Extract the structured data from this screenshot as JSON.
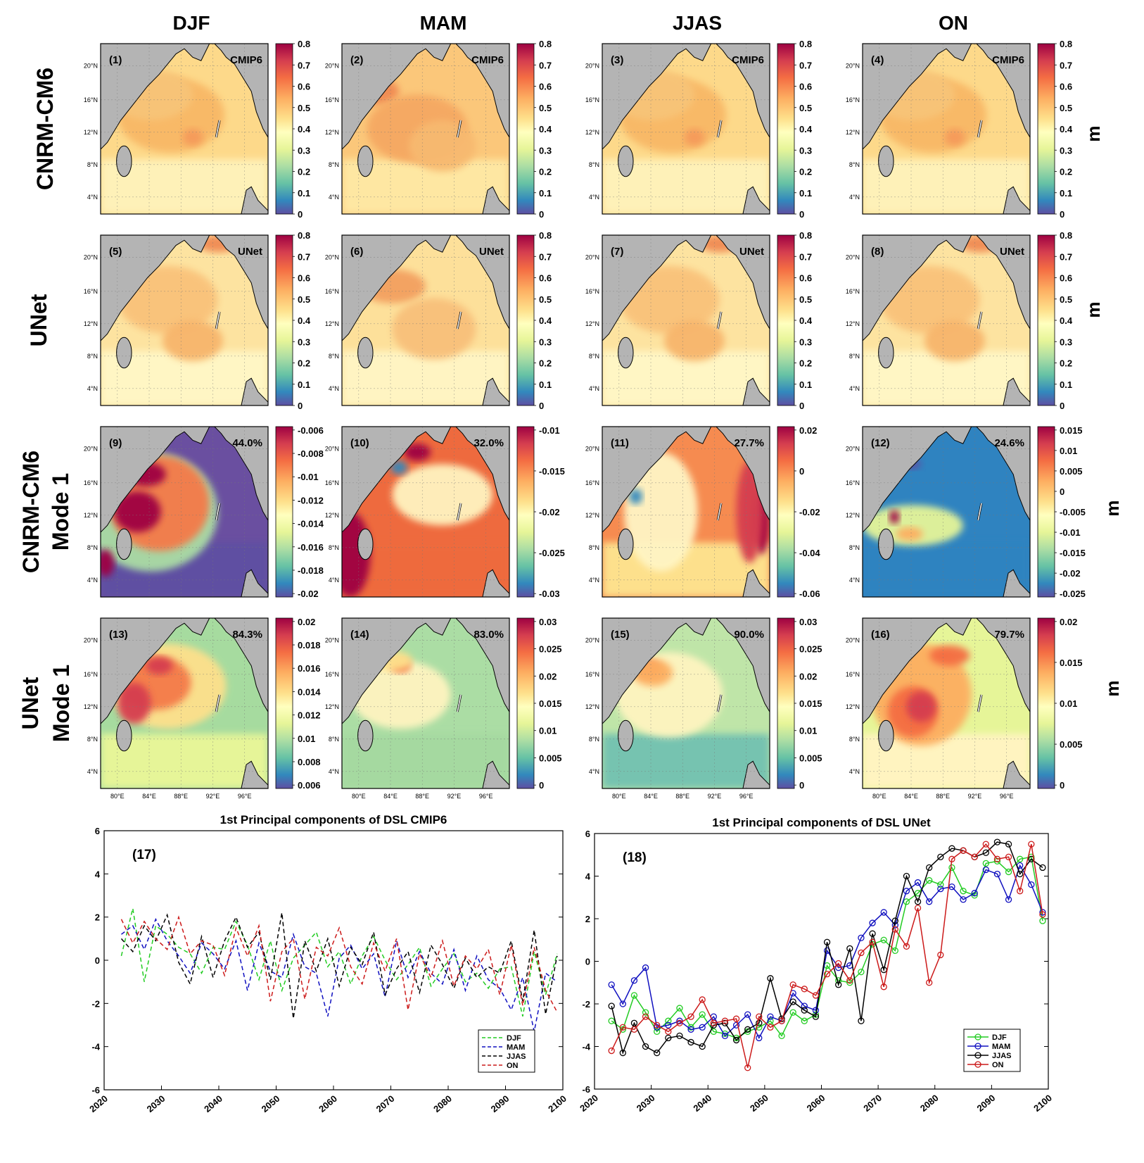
{
  "columns": [
    "DJF",
    "MAM",
    "JJAS",
    "ON"
  ],
  "rows": [
    {
      "label": "CNRM-CM6",
      "label2": ""
    },
    {
      "label": "UNet",
      "label2": ""
    },
    {
      "label": "CNRM-CM6",
      "label2": "Mode 1"
    },
    {
      "label": "UNet",
      "label2": "Mode 1"
    }
  ],
  "unit_label": "m",
  "lat_ticks": [
    "20°N",
    "16°N",
    "12°N",
    "8°N",
    "4°N"
  ],
  "lon_ticks": [
    "80°E",
    "84°E",
    "88°E",
    "92°E",
    "96°E"
  ],
  "panels": [
    {
      "id": "(1)",
      "tag": "CMIP6",
      "cbar": [
        "0.8",
        "0.7",
        "0.6",
        "0.5",
        "0.4",
        "0.3",
        "0.2",
        "0.1",
        "0"
      ],
      "theme": "mean_cmip"
    },
    {
      "id": "(2)",
      "tag": "CMIP6",
      "cbar": [
        "0.8",
        "0.7",
        "0.6",
        "0.5",
        "0.4",
        "0.3",
        "0.2",
        "0.1",
        "0"
      ],
      "theme": "mean_cmip_hi"
    },
    {
      "id": "(3)",
      "tag": "CMIP6",
      "cbar": [
        "0.8",
        "0.7",
        "0.6",
        "0.5",
        "0.4",
        "0.3",
        "0.2",
        "0.1",
        "0"
      ],
      "theme": "mean_cmip"
    },
    {
      "id": "(4)",
      "tag": "CMIP6",
      "cbar": [
        "0.8",
        "0.7",
        "0.6",
        "0.5",
        "0.4",
        "0.3",
        "0.2",
        "0.1",
        "0"
      ],
      "theme": "mean_cmip"
    },
    {
      "id": "(5)",
      "tag": "UNet",
      "cbar": [
        "0.8",
        "0.7",
        "0.6",
        "0.5",
        "0.4",
        "0.3",
        "0.2",
        "0.1",
        "0"
      ],
      "theme": "mean_unet"
    },
    {
      "id": "(6)",
      "tag": "UNet",
      "cbar": [
        "0.8",
        "0.7",
        "0.6",
        "0.5",
        "0.4",
        "0.3",
        "0.2",
        "0.1",
        "0"
      ],
      "theme": "mean_unet_hi"
    },
    {
      "id": "(7)",
      "tag": "UNet",
      "cbar": [
        "0.8",
        "0.7",
        "0.6",
        "0.5",
        "0.4",
        "0.3",
        "0.2",
        "0.1",
        "0"
      ],
      "theme": "mean_unet"
    },
    {
      "id": "(8)",
      "tag": "UNet",
      "cbar": [
        "0.8",
        "0.7",
        "0.6",
        "0.5",
        "0.4",
        "0.3",
        "0.2",
        "0.1",
        "0"
      ],
      "theme": "mean_unet"
    },
    {
      "id": "(9)",
      "tag": "44.0%",
      "cbar": [
        "-0.006",
        "-0.008",
        "-0.01",
        "-0.012",
        "-0.014",
        "-0.016",
        "-0.018",
        "-0.02"
      ],
      "theme": "eof9"
    },
    {
      "id": "(10)",
      "tag": "32.0%",
      "cbar": [
        "-0.01",
        "-0.015",
        "-0.02",
        "-0.025",
        "-0.03"
      ],
      "theme": "eof10"
    },
    {
      "id": "(11)",
      "tag": "27.7%",
      "cbar": [
        "0.02",
        "0",
        "-0.02",
        "-0.04",
        "-0.06"
      ],
      "theme": "eof11"
    },
    {
      "id": "(12)",
      "tag": "24.6%",
      "cbar": [
        "0.015",
        "0.01",
        "0.005",
        "0",
        "-0.005",
        "-0.01",
        "-0.015",
        "-0.02",
        "-0.025"
      ],
      "theme": "eof12"
    },
    {
      "id": "(13)",
      "tag": "84.3%",
      "cbar": [
        "0.02",
        "0.018",
        "0.016",
        "0.014",
        "0.012",
        "0.01",
        "0.008",
        "0.006"
      ],
      "theme": "eof13"
    },
    {
      "id": "(14)",
      "tag": "83.0%",
      "cbar": [
        "0.03",
        "0.025",
        "0.02",
        "0.015",
        "0.01",
        "0.005",
        "0"
      ],
      "theme": "eof14"
    },
    {
      "id": "(15)",
      "tag": "90.0%",
      "cbar": [
        "0.03",
        "0.025",
        "0.02",
        "0.015",
        "0.01",
        "0.005",
        "0"
      ],
      "theme": "eof15"
    },
    {
      "id": "(16)",
      "tag": "79.7%",
      "cbar": [
        "0.02",
        "0.015",
        "0.01",
        "0.005",
        "0"
      ],
      "theme": "eof16"
    }
  ],
  "colors": {
    "land": "#b4b4b4",
    "series": {
      "DJF": "#22cc22",
      "MAM": "#1010c0",
      "JJAS": "#000000",
      "ON": "#cc1a1a"
    }
  },
  "chart_data": [
    {
      "type": "line",
      "panel_id": "(17)",
      "title": "1st Principal components of DSL CMIP6",
      "style": "dashed",
      "xlabel": "",
      "ylabel": "",
      "xlim": [
        2020,
        2100
      ],
      "ylim": [
        -6,
        6
      ],
      "xticks": [
        2020,
        2030,
        2040,
        2050,
        2060,
        2070,
        2080,
        2090,
        2100
      ],
      "yticks": [
        6,
        4,
        2,
        0,
        -2,
        -4,
        -6
      ],
      "legend": [
        "DJF",
        "MAM",
        "JJAS",
        "ON"
      ],
      "legend_position": "bottom-right",
      "x": [
        2023,
        2025,
        2027,
        2029,
        2031,
        2033,
        2035,
        2037,
        2039,
        2041,
        2043,
        2045,
        2047,
        2049,
        2051,
        2053,
        2055,
        2057,
        2059,
        2061,
        2063,
        2065,
        2067,
        2069,
        2071,
        2073,
        2075,
        2077,
        2079,
        2081,
        2083,
        2085,
        2087,
        2089,
        2091,
        2093,
        2095,
        2097,
        2099
      ],
      "series": [
        {
          "name": "DJF",
          "values": [
            0.2,
            2.4,
            -1.0,
            1.6,
            1.2,
            0.6,
            0.3,
            -0.6,
            0.6,
            0.5,
            1.8,
            0.7,
            -0.9,
            0.9,
            -1.4,
            0.1,
            0.7,
            1.3,
            -0.3,
            0.4,
            -1.1,
            0.2,
            1.1,
            0.0,
            -0.9,
            -0.2,
            0.6,
            -1.2,
            -0.4,
            0.3,
            -1.0,
            -0.6,
            -1.3,
            -0.4,
            -0.3,
            -2.6,
            0.4,
            -1.6,
            0.3
          ]
        },
        {
          "name": "MAM",
          "values": [
            1.2,
            1.6,
            0.5,
            1.9,
            0.9,
            0.2,
            -0.6,
            0.8,
            0.3,
            -0.4,
            0.9,
            -1.4,
            0.8,
            -0.5,
            -0.8,
            1.2,
            -0.3,
            -0.6,
            -2.6,
            0.1,
            0.7,
            -0.4,
            0.3,
            -1.7,
            0.9,
            -0.8,
            0.4,
            -0.6,
            -1.1,
            0.5,
            -1.4,
            0.2,
            -0.9,
            -1.3,
            -2.3,
            -0.8,
            -3.3,
            -0.6,
            -1.0
          ]
        },
        {
          "name": "JJAS",
          "values": [
            1.0,
            0.4,
            1.6,
            0.9,
            2.1,
            -0.1,
            -1.1,
            1.1,
            -0.8,
            0.9,
            2.0,
            0.6,
            1.3,
            -0.9,
            2.2,
            -2.7,
            0.9,
            -0.5,
            1.0,
            -1.2,
            0.6,
            -0.2,
            1.3,
            -1.6,
            -0.4,
            0.4,
            -1.5,
            0.7,
            -0.2,
            -1.3,
            0.1,
            -0.8,
            -0.3,
            -0.6,
            0.9,
            -1.9,
            1.4,
            -2.5,
            0.2
          ]
        },
        {
          "name": "ON",
          "values": [
            1.9,
            0.8,
            1.8,
            1.0,
            0.5,
            2.0,
            0.3,
            0.9,
            0.7,
            -0.7,
            1.5,
            0.2,
            1.6,
            -1.9,
            0.4,
            1.0,
            -1.8,
            0.6,
            0.2,
            1.5,
            -0.3,
            -1.1,
            0.8,
            -0.5,
            1.0,
            -2.3,
            0.3,
            -0.8,
            0.9,
            -1.2,
            0.2,
            -0.4,
            0.5,
            -1.6,
            0.7,
            -2.1,
            0.6,
            -1.4,
            -2.4
          ]
        }
      ]
    },
    {
      "type": "line",
      "panel_id": "(18)",
      "title": "1st Principal components of DSL UNet",
      "style": "solid-circles",
      "xlabel": "",
      "ylabel": "",
      "xlim": [
        2020,
        2100
      ],
      "ylim": [
        -6,
        6
      ],
      "xticks": [
        2020,
        2030,
        2040,
        2050,
        2060,
        2070,
        2080,
        2090,
        2100
      ],
      "yticks": [
        6,
        4,
        2,
        0,
        -2,
        -4,
        -6
      ],
      "legend": [
        "DJF",
        "MAM",
        "JJAS",
        "ON"
      ],
      "legend_position": "bottom-right",
      "x": [
        2023,
        2025,
        2027,
        2029,
        2031,
        2033,
        2035,
        2037,
        2039,
        2041,
        2043,
        2045,
        2047,
        2049,
        2051,
        2053,
        2055,
        2057,
        2059,
        2061,
        2063,
        2065,
        2067,
        2069,
        2071,
        2073,
        2075,
        2077,
        2079,
        2081,
        2083,
        2085,
        2087,
        2089,
        2091,
        2093,
        2095,
        2097,
        2099
      ],
      "series": [
        {
          "name": "DJF",
          "values": [
            -2.8,
            -3.2,
            -1.6,
            -2.4,
            -3.3,
            -2.8,
            -2.2,
            -3.1,
            -2.5,
            -3.3,
            -3.4,
            -3.6,
            -3.3,
            -3.1,
            -2.8,
            -3.5,
            -2.4,
            -2.8,
            -2.5,
            -0.2,
            -0.9,
            -1.0,
            -0.5,
            0.8,
            1.0,
            0.5,
            2.8,
            3.2,
            3.8,
            3.6,
            4.4,
            3.3,
            3.1,
            4.6,
            4.7,
            4.2,
            4.8,
            4.9,
            1.9
          ]
        },
        {
          "name": "MAM",
          "values": [
            -1.1,
            -2.0,
            -0.9,
            -0.3,
            -3.1,
            -3.0,
            -2.8,
            -3.2,
            -3.1,
            -2.6,
            -3.5,
            -3.0,
            -2.5,
            -3.6,
            -2.6,
            -2.8,
            -1.5,
            -2.1,
            -2.3,
            0.5,
            -0.3,
            -0.2,
            1.1,
            1.8,
            2.3,
            1.7,
            3.3,
            3.7,
            2.8,
            3.4,
            3.5,
            2.9,
            3.2,
            4.3,
            4.1,
            2.9,
            4.5,
            3.6,
            2.3
          ]
        },
        {
          "name": "JJAS",
          "values": [
            -2.1,
            -4.3,
            -2.9,
            -4.0,
            -4.3,
            -3.6,
            -3.5,
            -3.8,
            -4.0,
            -3.0,
            -2.9,
            -3.7,
            -3.2,
            -2.9,
            -0.8,
            -2.7,
            -1.9,
            -2.3,
            -2.6,
            0.9,
            -1.1,
            0.6,
            -2.8,
            1.3,
            -0.4,
            1.9,
            4.0,
            2.8,
            4.4,
            4.9,
            5.3,
            5.2,
            4.9,
            5.1,
            5.6,
            5.5,
            4.1,
            4.8,
            4.4
          ]
        },
        {
          "name": "ON",
          "values": [
            -4.2,
            -3.1,
            -3.2,
            -2.6,
            -3.0,
            -3.3,
            -2.9,
            -2.6,
            -1.8,
            -2.9,
            -2.8,
            -2.7,
            -5.0,
            -2.6,
            -3.1,
            -2.8,
            -1.1,
            -1.3,
            -1.6,
            -0.6,
            -0.1,
            -0.9,
            0.4,
            0.9,
            -1.2,
            1.5,
            0.7,
            2.5,
            -1.0,
            0.3,
            4.8,
            5.2,
            4.9,
            5.5,
            4.8,
            4.9,
            3.3,
            5.5,
            2.2
          ]
        }
      ]
    }
  ]
}
